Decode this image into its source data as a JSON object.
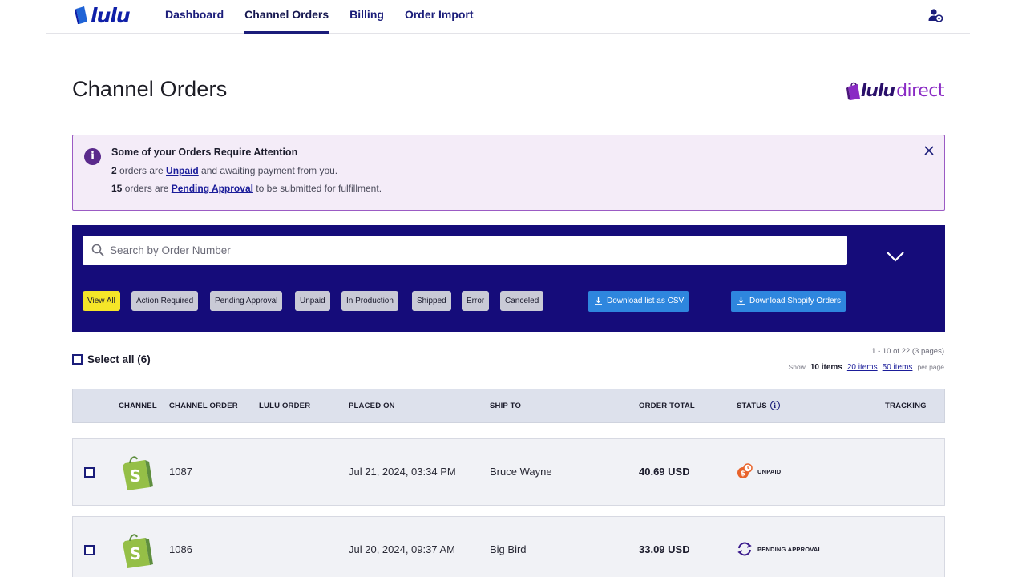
{
  "nav": {
    "logo_text": "lulu",
    "items": [
      {
        "label": "Dashboard",
        "active": false
      },
      {
        "label": "Channel Orders",
        "active": true
      },
      {
        "label": "Billing",
        "active": false
      },
      {
        "label": "Order Import",
        "active": false
      }
    ],
    "user_icon": "user-settings-icon"
  },
  "page": {
    "title": "Channel Orders",
    "brand_logo": {
      "part1": "lulu",
      "part2": "direct"
    }
  },
  "alert": {
    "icon": "info-icon",
    "title": "Some of your Orders Require Attention",
    "line1": {
      "count": "2",
      "pre": " orders are ",
      "link": "Unpaid",
      "post": " and awaiting payment from you."
    },
    "line2": {
      "count": "15",
      "pre": " orders are ",
      "link": "Pending Approval",
      "post": " to be submitted for fulfillment."
    }
  },
  "filters": {
    "search_placeholder": "Search by Order Number",
    "chips": [
      {
        "label": "View All",
        "active": true
      },
      {
        "label": "Action Required",
        "active": false
      },
      {
        "label": "Pending Approval",
        "active": false
      },
      {
        "label": "Unpaid",
        "active": false
      },
      {
        "label": "In Production",
        "active": false
      },
      {
        "label": "Shipped",
        "active": false
      },
      {
        "label": "Error",
        "active": false
      },
      {
        "label": "Canceled",
        "active": false
      }
    ],
    "download_csv": "Download list as CSV",
    "download_shopify": "Download Shopify Orders"
  },
  "list": {
    "select_all": "Select all (6)",
    "pager_summary": "1 - 10 of 22 (3 pages)",
    "show_label": "Show",
    "current_page_size": "10 items",
    "page_size_options": [
      "20 items",
      "50 items"
    ],
    "per_page_label": "per page"
  },
  "table": {
    "columns": [
      "CHANNEL",
      "CHANNEL ORDER",
      "LULU ORDER",
      "PLACED ON",
      "SHIP TO",
      "ORDER TOTAL",
      "STATUS",
      "TRACKING"
    ],
    "rows": [
      {
        "channel": "shopify",
        "channel_order": "1087",
        "lulu_order": "",
        "placed_on": "Jul 21, 2024, 03:34 PM",
        "ship_to": "Bruce Wayne",
        "total": "40.69 USD",
        "status": "UNPAID",
        "status_icon": "unpaid-clock-icon",
        "tracking": ""
      },
      {
        "channel": "shopify",
        "channel_order": "1086",
        "lulu_order": "",
        "placed_on": "Jul 20, 2024, 09:37 AM",
        "ship_to": "Big Bird",
        "total": "33.09 USD",
        "status": "PENDING APPROVAL",
        "status_icon": "pending-sync-icon",
        "tracking": ""
      }
    ]
  },
  "colors": {
    "brand_navy": "#1b1d7a",
    "filter_panel": "#150c7a",
    "chip_active": "#f5e628",
    "download_blue": "#2e86de",
    "alert_bg": "#f4ecf8",
    "alert_border": "#9b5bc4",
    "shopify_green": "#95bf47",
    "unpaid_orange": "#e8632b",
    "pending_purple": "#3a1a8c"
  }
}
